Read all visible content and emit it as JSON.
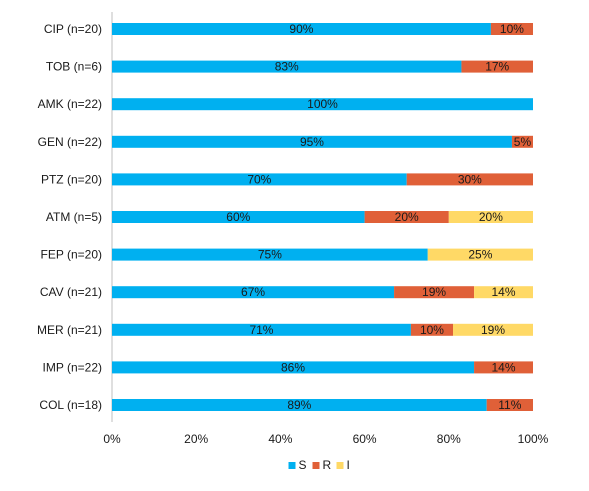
{
  "chart_data": {
    "type": "bar",
    "orientation": "horizontal",
    "stacked": true,
    "percent_stacked": true,
    "categories": [
      "CIP (n=20)",
      "TOB (n=6)",
      "AMK (n=22)",
      "GEN (n=22)",
      "PTZ (n=20)",
      "ATM (n=5)",
      "FEP (n=20)",
      "CAV (n=21)",
      "MER (n=21)",
      "IMP (n=22)",
      "COL (n=18)"
    ],
    "series": [
      {
        "name": "S",
        "color": "#00B0F0",
        "values": [
          90,
          83,
          100,
          95,
          70,
          60,
          75,
          67,
          71,
          86,
          89
        ],
        "labels": [
          "90%",
          "83%",
          "100%",
          "95%",
          "70%",
          "60%",
          "75%",
          "67%",
          "71%",
          "86%",
          "89%"
        ]
      },
      {
        "name": "R",
        "color": "#E06038",
        "values": [
          10,
          17,
          0,
          5,
          30,
          20,
          0,
          19,
          10,
          14,
          11
        ],
        "labels": [
          "10%",
          "17%",
          "",
          "5%",
          "30%",
          "20%",
          "",
          "19%",
          "10%",
          "14%",
          "11%"
        ]
      },
      {
        "name": "I",
        "color": "#FFD966",
        "values": [
          0,
          0,
          0,
          0,
          0,
          20,
          25,
          14,
          19,
          0,
          0
        ],
        "labels": [
          "",
          "",
          "",
          "",
          "",
          "20%",
          "25%",
          "14%",
          "19%",
          "",
          ""
        ]
      }
    ],
    "x_ticks": [
      "0%",
      "20%",
      "40%",
      "60%",
      "80%",
      "100%"
    ],
    "xlim": [
      0,
      100
    ],
    "grid": false,
    "legend_position": "bottom",
    "title": "",
    "xlabel": "",
    "ylabel": ""
  }
}
